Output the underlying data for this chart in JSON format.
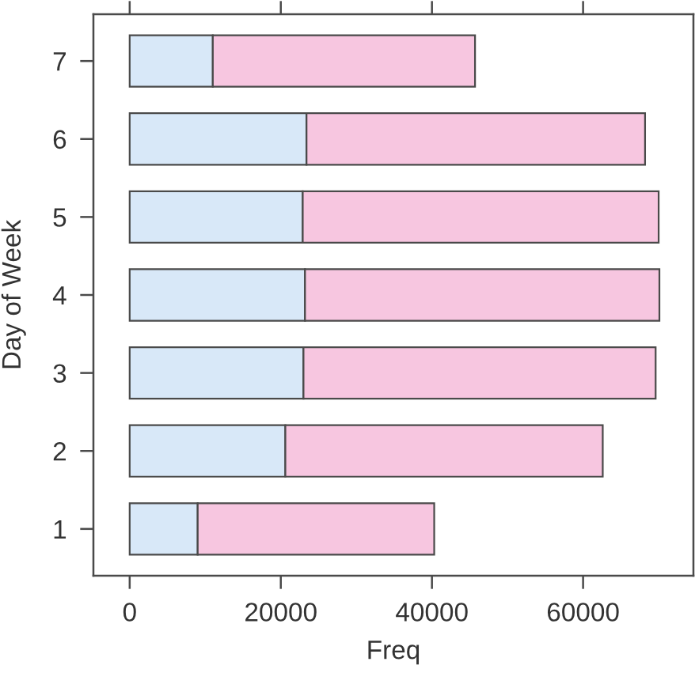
{
  "chart_data": {
    "type": "bar",
    "orientation": "horizontal",
    "stacked": true,
    "xlabel": "Freq",
    "ylabel": "Day of Week",
    "categories": [
      "7",
      "6",
      "5",
      "4",
      "3",
      "2",
      "1"
    ],
    "series": [
      {
        "color": "#d8e8f8",
        "values": [
          11000,
          23400,
          22900,
          23200,
          23000,
          20600,
          9000
        ]
      },
      {
        "color": "#f7c6e0",
        "values": [
          34700,
          44800,
          47100,
          46900,
          46600,
          42000,
          31300
        ]
      }
    ],
    "xlim": [
      -4800,
      74600
    ],
    "xticks": [
      0,
      20000,
      40000,
      60000
    ],
    "grid": false,
    "legend": false
  }
}
